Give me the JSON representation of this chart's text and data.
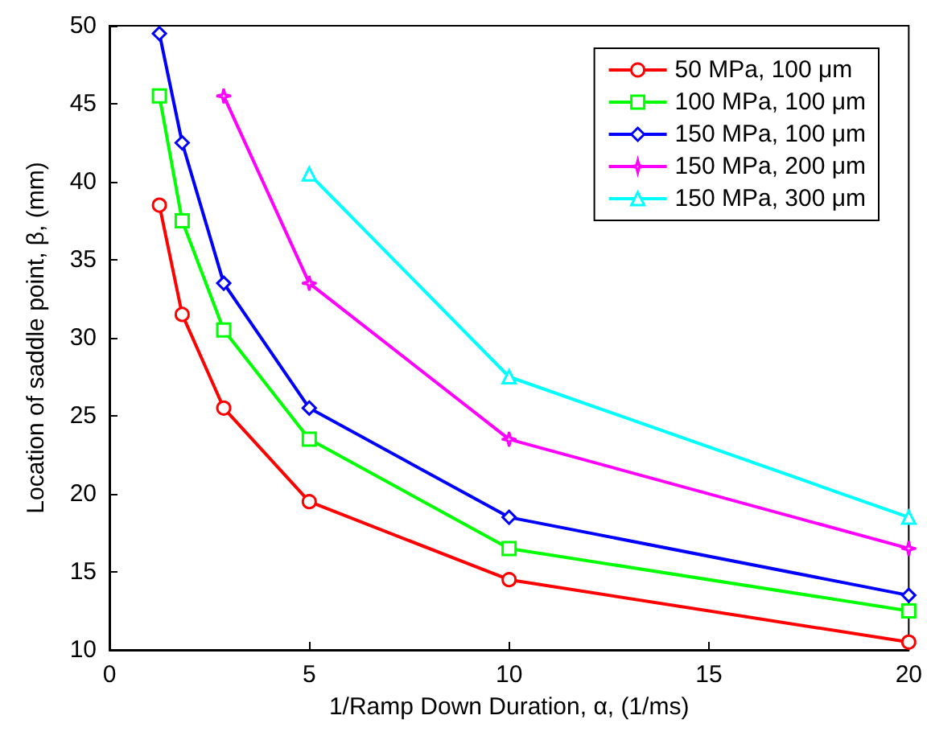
{
  "chart_data": {
    "type": "line",
    "xlabel": "1/Ramp Down Duration, α, (1/ms)",
    "ylabel": "Location of saddle point, β, (mm)",
    "xlim": [
      0,
      20
    ],
    "xticks": [
      0,
      5,
      10,
      15,
      20
    ],
    "ylim": [
      10,
      50
    ],
    "yticks": [
      10,
      15,
      20,
      25,
      30,
      35,
      40,
      45,
      50
    ],
    "grid": false,
    "legend": "top right",
    "line_style": "solid",
    "series": [
      {
        "name": "50 MPa, 100 μm",
        "color": "#ff0000",
        "marker": "circle",
        "x": [
          1.25,
          1.82,
          2.86,
          5,
          10,
          20
        ],
        "values": [
          38.5,
          31.5,
          25.5,
          19.5,
          14.5,
          10.5
        ]
      },
      {
        "name": "100 MPa, 100 μm",
        "color": "#00ff00",
        "marker": "square",
        "x": [
          1.25,
          1.82,
          2.86,
          5,
          10,
          20
        ],
        "values": [
          45.5,
          37.5,
          30.5,
          23.5,
          16.5,
          12.5
        ]
      },
      {
        "name": "150 MPa, 100 μm",
        "color": "#0000ff",
        "marker": "diamond",
        "x": [
          1.25,
          1.82,
          2.86,
          5,
          10,
          20
        ],
        "values": [
          49.5,
          42.5,
          33.5,
          25.5,
          18.5,
          13.5
        ]
      },
      {
        "name": "150 MPa, 200 μm",
        "color": "#ff00ff",
        "marker": "star",
        "x": [
          2.86,
          5,
          10,
          20
        ],
        "values": [
          45.5,
          33.5,
          23.5,
          16.5
        ]
      },
      {
        "name": "150 MPa, 300 μm",
        "color": "#00ffff",
        "marker": "triangle",
        "x": [
          5,
          10,
          20
        ],
        "values": [
          40.5,
          27.5,
          18.5
        ]
      }
    ]
  }
}
